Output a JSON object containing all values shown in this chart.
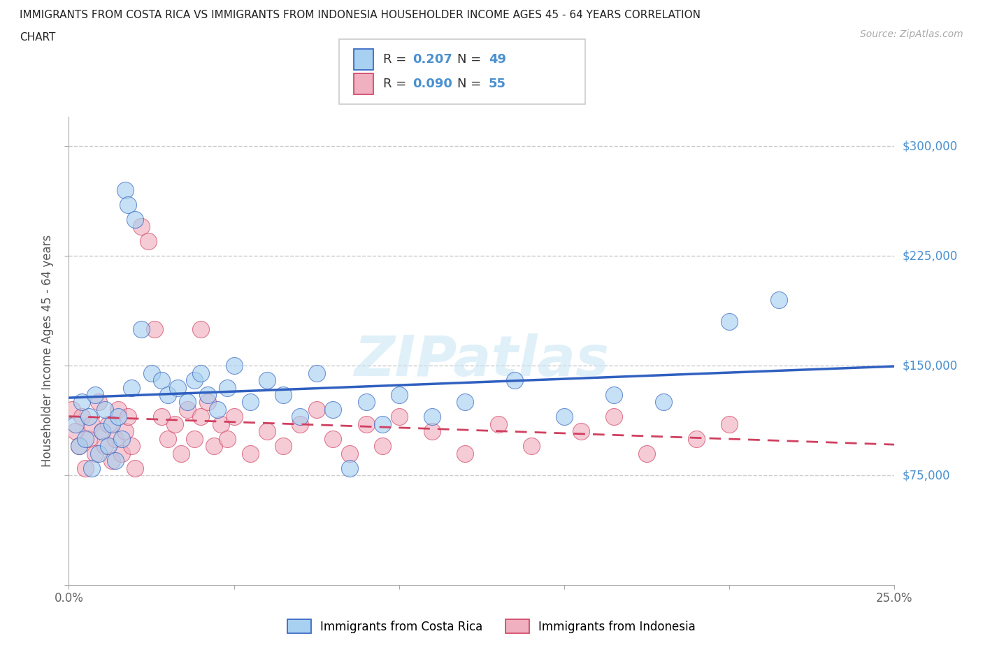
{
  "title_line1": "IMMIGRANTS FROM COSTA RICA VS IMMIGRANTS FROM INDONESIA HOUSEHOLDER INCOME AGES 45 - 64 YEARS CORRELATION",
  "title_line2": "CHART",
  "source": "Source: ZipAtlas.com",
  "ylabel": "Householder Income Ages 45 - 64 years",
  "xlim": [
    0.0,
    0.25
  ],
  "ylim": [
    0,
    320000
  ],
  "yticks": [
    0,
    75000,
    150000,
    225000,
    300000
  ],
  "ytick_labels": [
    "",
    "$75,000",
    "$150,000",
    "$225,000",
    "$300,000"
  ],
  "legend_labels": [
    "Immigrants from Costa Rica",
    "Immigrants from Indonesia"
  ],
  "R_costa_rica": 0.207,
  "N_costa_rica": 49,
  "R_indonesia": 0.09,
  "N_indonesia": 55,
  "color_costa_rica": "#a8d0f0",
  "color_indonesia": "#f0b0c0",
  "line_color_costa_rica": "#3060c0",
  "line_color_indonesia": "#d04060",
  "watermark": "ZIPatlas",
  "background_color": "#ffffff",
  "costa_rica_x": [
    0.002,
    0.003,
    0.004,
    0.005,
    0.006,
    0.007,
    0.008,
    0.009,
    0.01,
    0.011,
    0.012,
    0.013,
    0.014,
    0.015,
    0.016,
    0.017,
    0.018,
    0.019,
    0.02,
    0.022,
    0.025,
    0.028,
    0.03,
    0.033,
    0.036,
    0.038,
    0.04,
    0.042,
    0.045,
    0.048,
    0.05,
    0.055,
    0.06,
    0.065,
    0.07,
    0.075,
    0.08,
    0.085,
    0.09,
    0.095,
    0.1,
    0.11,
    0.12,
    0.135,
    0.15,
    0.165,
    0.18,
    0.2,
    0.215
  ],
  "costa_rica_y": [
    110000,
    95000,
    125000,
    100000,
    115000,
    80000,
    130000,
    90000,
    105000,
    120000,
    95000,
    110000,
    85000,
    115000,
    100000,
    270000,
    260000,
    135000,
    250000,
    175000,
    145000,
    140000,
    130000,
    135000,
    125000,
    140000,
    145000,
    130000,
    120000,
    135000,
    150000,
    125000,
    140000,
    130000,
    115000,
    145000,
    120000,
    80000,
    125000,
    110000,
    130000,
    115000,
    125000,
    140000,
    115000,
    130000,
    125000,
    180000,
    195000
  ],
  "indonesia_x": [
    0.001,
    0.002,
    0.003,
    0.004,
    0.005,
    0.006,
    0.007,
    0.008,
    0.009,
    0.01,
    0.011,
    0.012,
    0.013,
    0.014,
    0.015,
    0.016,
    0.017,
    0.018,
    0.019,
    0.02,
    0.022,
    0.024,
    0.026,
    0.028,
    0.03,
    0.032,
    0.034,
    0.036,
    0.038,
    0.04,
    0.042,
    0.044,
    0.046,
    0.048,
    0.05,
    0.055,
    0.06,
    0.065,
    0.07,
    0.075,
    0.08,
    0.085,
    0.09,
    0.095,
    0.1,
    0.11,
    0.12,
    0.13,
    0.14,
    0.155,
    0.165,
    0.175,
    0.19,
    0.2,
    0.04
  ],
  "indonesia_y": [
    120000,
    105000,
    95000,
    115000,
    80000,
    100000,
    110000,
    90000,
    125000,
    105000,
    95000,
    110000,
    85000,
    100000,
    120000,
    90000,
    105000,
    115000,
    95000,
    80000,
    245000,
    235000,
    175000,
    115000,
    100000,
    110000,
    90000,
    120000,
    100000,
    115000,
    125000,
    95000,
    110000,
    100000,
    115000,
    90000,
    105000,
    95000,
    110000,
    120000,
    100000,
    90000,
    110000,
    95000,
    115000,
    105000,
    90000,
    110000,
    95000,
    105000,
    115000,
    90000,
    100000,
    110000,
    175000
  ]
}
